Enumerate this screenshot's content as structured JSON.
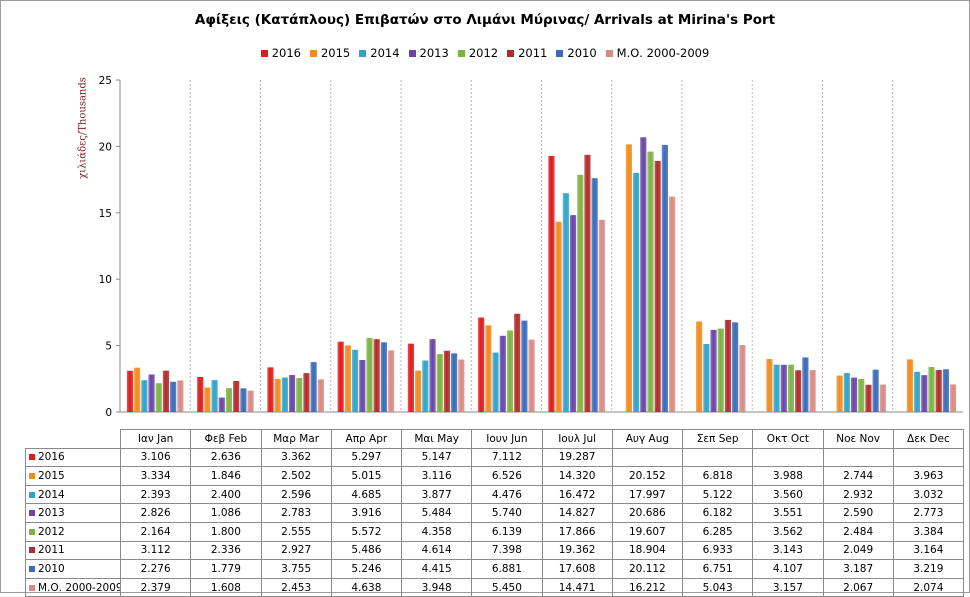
{
  "chart_data": {
    "type": "bar",
    "title": "Αφίξεις (Κατάπλους) Επιβατών  στο Λιμάνι Μύρινας/ Arrivals at Mirina's Port",
    "ylabel": "χιλιάδες/Thousands",
    "xlabel": "",
    "ylim": [
      0,
      25
    ],
    "yticks": [
      "0",
      "5",
      "10",
      "15",
      "20",
      "25"
    ],
    "yticks_values": [
      0,
      5,
      10,
      15,
      20,
      25
    ],
    "grid": "vertical dashed",
    "legend_position": "top",
    "categories": [
      "Ιαν  Jan",
      "Φεβ  Feb",
      "Μαρ  Mar",
      "Απρ  Apr",
      "Μαι  May",
      "Ιουν  Jun",
      "Ιουλ  Jul",
      "Αυγ  Aug",
      "Σεπ  Sep",
      "Οκτ  Oct",
      "Νοε  Nov",
      "Δεκ  Dec"
    ],
    "series": [
      {
        "name": "2016",
        "color": "#e31a1c",
        "values": [
          3.106,
          2.636,
          3.362,
          5.297,
          5.147,
          7.112,
          19.287,
          null,
          null,
          null,
          null,
          null
        ],
        "labels": [
          "3.106",
          "2.636",
          "3.362",
          "5.297",
          "5.147",
          "7.112",
          "19.287",
          "",
          "",
          "",
          "",
          ""
        ]
      },
      {
        "name": "2015",
        "color": "#f28a1e",
        "values": [
          3.334,
          1.846,
          2.502,
          5.015,
          3.116,
          6.526,
          14.32,
          20.152,
          6.818,
          3.988,
          2.744,
          3.963
        ],
        "labels": [
          "3.334",
          "1.846",
          "2.502",
          "5.015",
          "3.116",
          "6.526",
          "14.320",
          "20.152",
          "6.818",
          "3.988",
          "2.744",
          "3.963"
        ]
      },
      {
        "name": "2014",
        "color": "#2fa3c9",
        "values": [
          2.393,
          2.4,
          2.596,
          4.685,
          3.877,
          4.476,
          16.472,
          17.997,
          5.122,
          3.56,
          2.932,
          3.032
        ],
        "labels": [
          "2.393",
          "2.400",
          "2.596",
          "4.685",
          "3.877",
          "4.476",
          "16.472",
          "17.997",
          "5.122",
          "3.560",
          "2.932",
          "3.032"
        ]
      },
      {
        "name": "2013",
        "color": "#6a45a6",
        "values": [
          2.826,
          1.086,
          2.783,
          3.916,
          5.484,
          5.74,
          14.827,
          20.686,
          6.182,
          3.551,
          2.59,
          2.773
        ],
        "labels": [
          "2.826",
          "1.086",
          "2.783",
          "3.916",
          "5.484",
          "5.740",
          "14.827",
          "20.686",
          "6.182",
          "3.551",
          "2.590",
          "2.773"
        ]
      },
      {
        "name": "2012",
        "color": "#7cb342",
        "values": [
          2.164,
          1.8,
          2.555,
          5.572,
          4.358,
          6.139,
          17.866,
          19.607,
          6.285,
          3.562,
          2.484,
          3.384
        ],
        "labels": [
          "2.164",
          "1.800",
          "2.555",
          "5.572",
          "4.358",
          "6.139",
          "17.866",
          "19.607",
          "6.285",
          "3.562",
          "2.484",
          "3.384"
        ]
      },
      {
        "name": "2011",
        "color": "#b32a2a",
        "values": [
          3.112,
          2.336,
          2.927,
          5.486,
          4.614,
          7.398,
          19.362,
          18.904,
          6.933,
          3.143,
          2.049,
          3.164
        ],
        "labels": [
          "3.112",
          "2.336",
          "2.927",
          "5.486",
          "4.614",
          "7.398",
          "19.362",
          "18.904",
          "6.933",
          "3.143",
          "2.049",
          "3.164"
        ]
      },
      {
        "name": "2010",
        "color": "#3a6bb8",
        "values": [
          2.276,
          1.779,
          3.755,
          5.246,
          4.415,
          6.881,
          17.608,
          20.112,
          6.751,
          4.107,
          3.187,
          3.219
        ],
        "labels": [
          "2.276",
          "1.779",
          "3.755",
          "5.246",
          "4.415",
          "6.881",
          "17.608",
          "20.112",
          "6.751",
          "4.107",
          "3.187",
          "3.219"
        ]
      },
      {
        "name": "Μ.Ο. 2000-2009",
        "color": "#d98a82",
        "values": [
          2.379,
          1.608,
          2.453,
          4.638,
          3.948,
          5.45,
          14.471,
          16.212,
          5.043,
          3.157,
          2.067,
          2.074
        ],
        "labels": [
          "2.379",
          "1.608",
          "2.453",
          "4.638",
          "3.948",
          "5.450",
          "14.471",
          "16.212",
          "5.043",
          "3.157",
          "2.067",
          "2.074"
        ]
      }
    ]
  }
}
